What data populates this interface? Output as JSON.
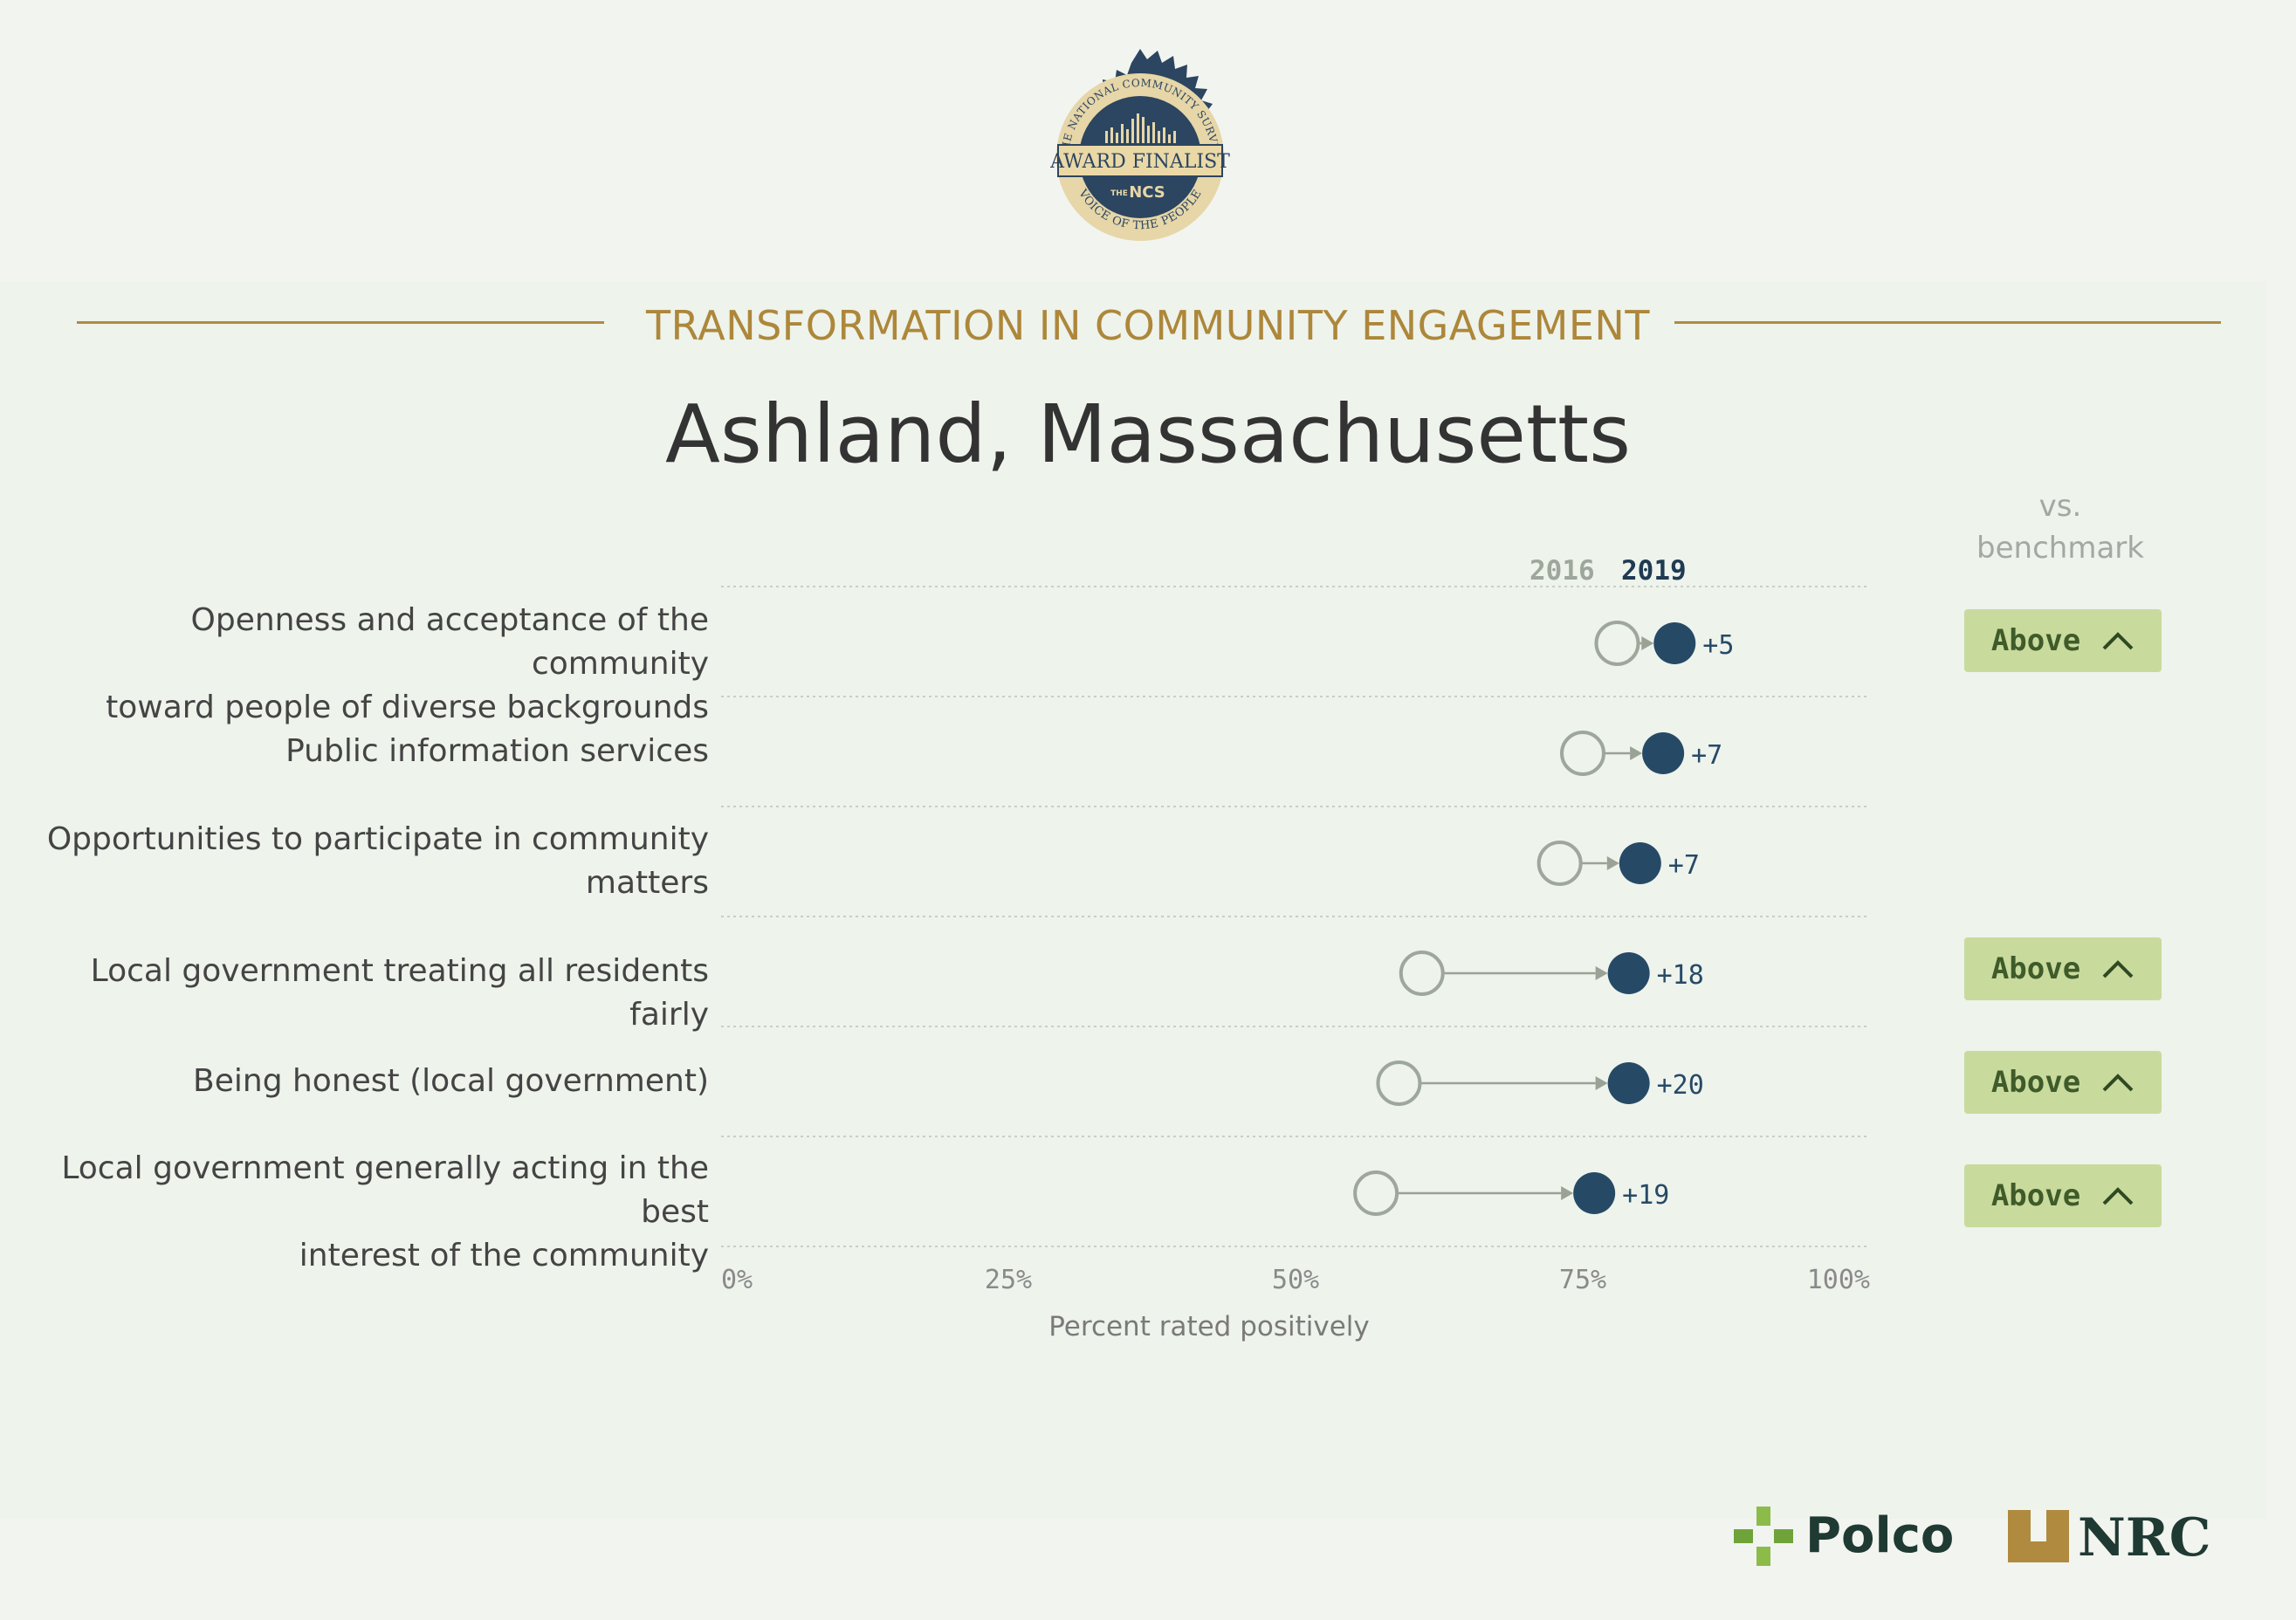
{
  "badge": {
    "arc_top": "THE NATIONAL COMMUNITY SURVEY",
    "banner": "AWARD FINALIST",
    "mark": "NCS",
    "mark_prefix": "THE",
    "arc_bottom": "VOICE OF THE PEOPLE"
  },
  "header": {
    "section_title": "TRANSFORMATION IN COMMUNITY ENGAGEMENT",
    "city": "Ashland, Massachusetts",
    "benchmark_label_1": "vs.",
    "benchmark_label_2": "benchmark"
  },
  "colors": {
    "accent_gold": "#ad873a",
    "dot_2019": "#264a66",
    "dot_2016": "#9ea79b",
    "above_badge": "#c9da9d"
  },
  "chart_data": {
    "type": "dumbbell",
    "xlabel": "Percent rated positively",
    "xlim": [
      0,
      100
    ],
    "x_ticks": [
      "0%",
      "25%",
      "50%",
      "75%",
      "100%"
    ],
    "legend": [
      "2016",
      "2019"
    ],
    "rows": [
      {
        "label": "Openness and acceptance of the community toward people of diverse backgrounds",
        "label_lines": [
          "Openness and acceptance of the community",
          "toward people of diverse backgrounds"
        ],
        "v2016": 78,
        "v2019": 83,
        "change": "+5",
        "benchmark": "Above"
      },
      {
        "label": "Public information services",
        "label_lines": [
          "Public information services"
        ],
        "v2016": 75,
        "v2019": 82,
        "change": "+7",
        "benchmark": ""
      },
      {
        "label": "Opportunities to participate in community matters",
        "label_lines": [
          "Opportunities to participate in community",
          "matters"
        ],
        "v2016": 73,
        "v2019": 80,
        "change": "+7",
        "benchmark": ""
      },
      {
        "label": "Local government treating all residents fairly",
        "label_lines": [
          "Local government treating all residents fairly"
        ],
        "v2016": 61,
        "v2019": 79,
        "change": "+18",
        "benchmark": "Above"
      },
      {
        "label": "Being honest (local government)",
        "label_lines": [
          "Being honest (local government)"
        ],
        "v2016": 59,
        "v2019": 79,
        "change": "+20",
        "benchmark": "Above"
      },
      {
        "label": "Local government generally acting in the best interest of the community",
        "label_lines": [
          "Local government generally acting in the best",
          "interest of the community"
        ],
        "v2016": 57,
        "v2019": 76,
        "change": "+19",
        "benchmark": "Above"
      }
    ]
  },
  "logos": {
    "polco": "Polco",
    "nrc": "NRC"
  }
}
